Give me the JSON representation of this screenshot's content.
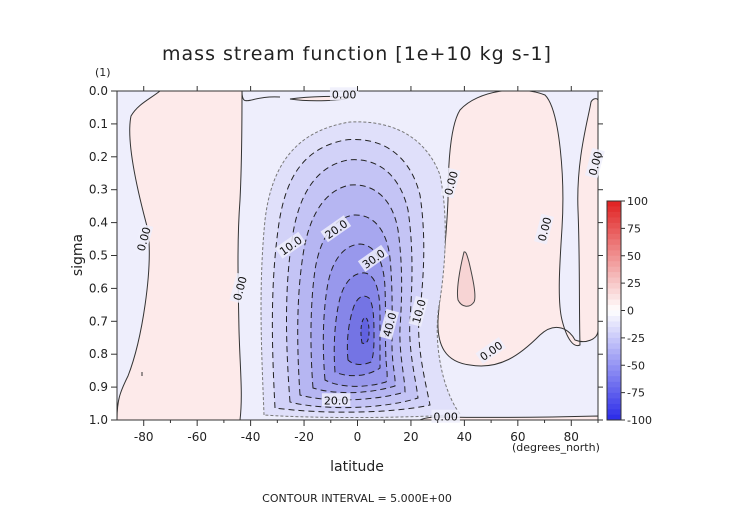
{
  "chart_data": {
    "type": "heatmap",
    "title": "mass stream function [1e+10 kg s-1]",
    "xlabel": "latitude",
    "xunit": "(degrees_north)",
    "ylabel": "sigma",
    "yunit": "(1)",
    "xlim": [
      -90,
      90
    ],
    "ylim": [
      1.0,
      0.0
    ],
    "x_ticks": [
      -80,
      -60,
      -40,
      -20,
      0,
      20,
      40,
      60,
      80
    ],
    "y_ticks": [
      0.0,
      0.1,
      0.2,
      0.3,
      0.4,
      0.5,
      0.6,
      0.7,
      0.8,
      0.9,
      1.0
    ],
    "contour_interval": "CONTOUR INTERVAL = 5.000E+00",
    "colorbar": {
      "ticks": [
        "100",
        "75",
        "50",
        "25",
        "0",
        "-25",
        "-50",
        "-75",
        "-100"
      ],
      "min": -100,
      "max": 100,
      "colors": {
        "negative": "#2a2ae8",
        "zero": "#ffffff",
        "positive": "#e02020"
      }
    },
    "features": [
      {
        "sign": "negative",
        "min_value": -45,
        "lat": 5,
        "sigma": 0.7,
        "note": "main cell"
      },
      {
        "sign": "positive",
        "lat": -80,
        "sigma": 0.5,
        "region": "southern polar"
      },
      {
        "sign": "positive",
        "lat": 57,
        "sigma": 0.45,
        "region": "northern midlatitude"
      }
    ],
    "contour_labels": [
      {
        "text": "0.00",
        "lat": -5,
        "sigma": 0.01
      },
      {
        "text": "0.00",
        "lat": -80,
        "sigma": 0.45
      },
      {
        "text": "0.00",
        "lat": -44,
        "sigma": 0.6
      },
      {
        "text": "10.0",
        "lat": -25,
        "sigma": 0.47
      },
      {
        "text": "20.0",
        "lat": -8,
        "sigma": 0.42
      },
      {
        "text": "30.0",
        "lat": 6,
        "sigma": 0.51
      },
      {
        "text": "40.0",
        "lat": 12,
        "sigma": 0.71
      },
      {
        "text": "10.0",
        "lat": 23,
        "sigma": 0.67
      },
      {
        "text": "20.0",
        "lat": -8,
        "sigma": 0.94
      },
      {
        "text": "0.00",
        "lat": 35,
        "sigma": 0.28
      },
      {
        "text": "0.00",
        "lat": 89,
        "sigma": 0.22
      },
      {
        "text": "0.00",
        "lat": 70,
        "sigma": 0.42
      },
      {
        "text": "0.00",
        "lat": 50,
        "sigma": 0.79
      },
      {
        "text": "0.00",
        "lat": 33,
        "sigma": 0.99
      }
    ]
  }
}
